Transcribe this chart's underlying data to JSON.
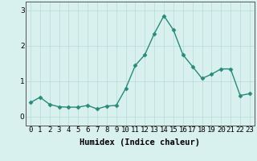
{
  "title": "",
  "xlabel": "Humidex (Indice chaleur)",
  "ylabel": "",
  "x_values": [
    0,
    1,
    2,
    3,
    4,
    5,
    6,
    7,
    8,
    9,
    10,
    11,
    12,
    13,
    14,
    15,
    16,
    17,
    18,
    19,
    20,
    21,
    22,
    23
  ],
  "y_values": [
    0.4,
    0.55,
    0.35,
    0.28,
    0.27,
    0.27,
    0.32,
    0.22,
    0.3,
    0.32,
    0.8,
    1.45,
    1.75,
    2.35,
    2.85,
    2.45,
    1.75,
    1.42,
    1.08,
    1.2,
    1.35,
    1.35,
    0.6,
    0.65
  ],
  "line_color": "#2a8a7a",
  "marker": "D",
  "marker_size": 2.5,
  "background_color": "#d8f0ee",
  "grid_color": "#b8dbd8",
  "ylim": [
    -0.25,
    3.25
  ],
  "xlim": [
    -0.5,
    23.5
  ],
  "yticks": [
    0,
    1,
    2,
    3
  ],
  "xlabel_fontsize": 7.5,
  "tick_fontsize": 6.5,
  "linewidth": 1.0
}
